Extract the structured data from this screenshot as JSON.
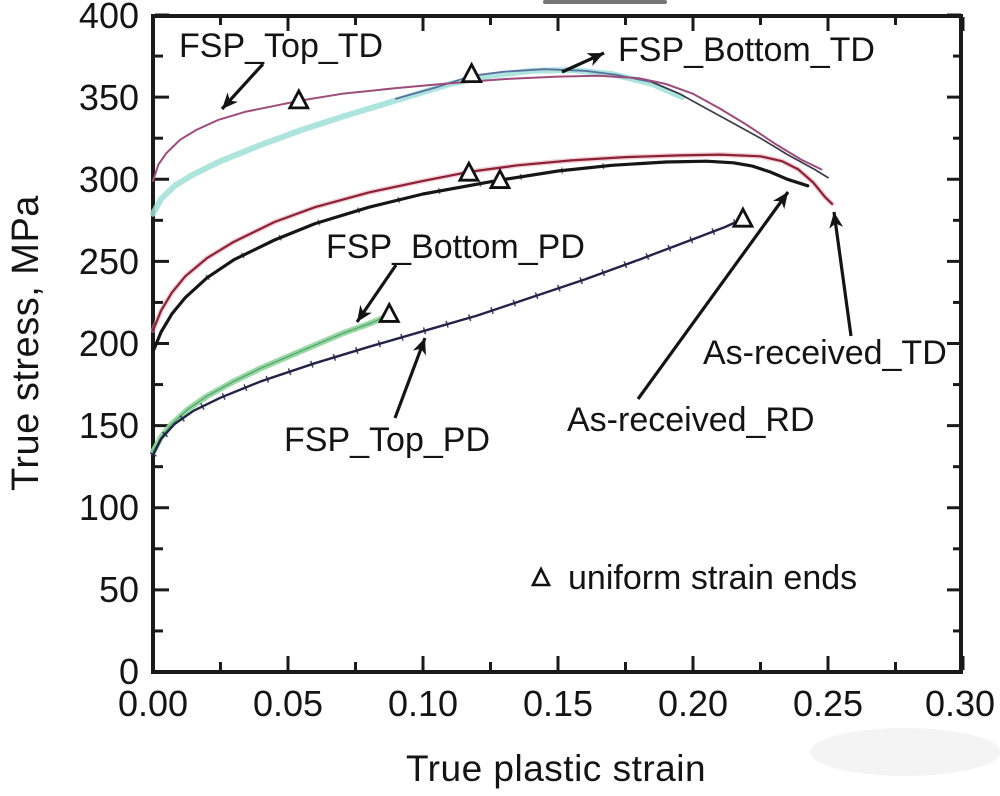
{
  "chart_data": {
    "type": "line",
    "title": "",
    "xlabel": "True plastic strain",
    "ylabel": "True stress, MPa",
    "xlim": [
      0,
      0.3
    ],
    "ylim": [
      0,
      400
    ],
    "grid": false,
    "x_ticks": [
      0,
      0.05,
      0.1,
      0.15,
      0.2,
      0.25,
      0.3
    ],
    "x_minor_ticks": [
      0.025,
      0.075,
      0.125,
      0.175,
      0.225,
      0.275
    ],
    "x_tick_labels": [
      "0.00",
      "0.05",
      "0.10",
      "0.15",
      "0.20",
      "0.25",
      "0.30"
    ],
    "y_ticks": [
      400,
      350,
      300,
      250,
      200,
      150,
      100,
      50,
      0
    ],
    "y_minor_ticks": [
      375,
      325,
      275,
      225,
      175,
      125,
      75,
      25
    ],
    "y_tick_labels": [
      "400",
      "350",
      "300",
      "250",
      "200",
      "150",
      "100",
      "50",
      "0"
    ],
    "frame_color": "#1a1a1a",
    "series": [
      {
        "id": "fsp-bottom-td-band",
        "name": "FSP_Bottom_TD",
        "role": "band",
        "color": "#9fe0d8",
        "width": 6,
        "opacity": 0.85,
        "points": [
          [
            0,
            279
          ],
          [
            0.003,
            288
          ],
          [
            0.008,
            296
          ],
          [
            0.015,
            303
          ],
          [
            0.025,
            311
          ],
          [
            0.04,
            321
          ],
          [
            0.055,
            330
          ],
          [
            0.07,
            338
          ],
          [
            0.09,
            348
          ],
          [
            0.11,
            358
          ],
          [
            0.125,
            363
          ],
          [
            0.14,
            366
          ],
          [
            0.155,
            366.5
          ],
          [
            0.17,
            364
          ],
          [
            0.185,
            358
          ],
          [
            0.196,
            350
          ]
        ]
      },
      {
        "id": "fsp-bottom-td-line",
        "name": "FSP_Bottom_TD",
        "role": "noisy-top-edge",
        "color": "#4f6596",
        "width": 1.8,
        "opacity": 0.9,
        "points": [
          [
            0.09,
            349
          ],
          [
            0.105,
            356
          ],
          [
            0.118,
            363
          ],
          [
            0.13,
            365.5
          ],
          [
            0.145,
            367
          ],
          [
            0.16,
            366
          ],
          [
            0.172,
            363.5
          ],
          [
            0.185,
            359
          ]
        ]
      },
      {
        "id": "fsp-bottom-td-tail",
        "name": "FSP_Bottom_TD",
        "role": "post-neck-tail",
        "color": "#3c3c49",
        "width": 1.7,
        "opacity": 1,
        "points": [
          [
            0.185,
            359
          ],
          [
            0.195,
            352
          ],
          [
            0.205,
            343
          ],
          [
            0.215,
            334
          ],
          [
            0.225,
            325
          ],
          [
            0.235,
            315
          ],
          [
            0.245,
            306
          ],
          [
            0.25,
            301
          ]
        ]
      },
      {
        "id": "fsp-top-td",
        "name": "FSP_Top_TD",
        "role": "main",
        "color": "#9d4c7c",
        "width": 2,
        "opacity": 1,
        "points": [
          [
            0,
            299
          ],
          [
            0.002,
            309
          ],
          [
            0.005,
            316
          ],
          [
            0.01,
            324
          ],
          [
            0.016,
            330
          ],
          [
            0.024,
            336
          ],
          [
            0.034,
            341
          ],
          [
            0.046,
            345
          ],
          [
            0.055,
            348
          ],
          [
            0.07,
            352
          ],
          [
            0.09,
            355.5
          ],
          [
            0.11,
            358.5
          ],
          [
            0.13,
            361
          ],
          [
            0.15,
            362.5
          ],
          [
            0.165,
            363
          ],
          [
            0.18,
            361.5
          ],
          [
            0.19,
            358
          ],
          [
            0.2,
            352
          ],
          [
            0.21,
            343
          ],
          [
            0.22,
            333
          ],
          [
            0.23,
            322
          ],
          [
            0.24,
            312
          ],
          [
            0.2475,
            306
          ]
        ]
      },
      {
        "id": "as-received-td-halo",
        "name": "As-received_TD",
        "role": "halo",
        "color": "#e2a0ac",
        "width": 5,
        "opacity": 0.5,
        "points": [
          [
            0,
            208
          ],
          [
            0.003,
            220
          ],
          [
            0.007,
            231
          ],
          [
            0.012,
            241
          ],
          [
            0.02,
            252
          ],
          [
            0.03,
            262
          ],
          [
            0.045,
            274
          ],
          [
            0.06,
            283
          ],
          [
            0.08,
            292
          ],
          [
            0.1,
            299
          ],
          [
            0.117,
            304.5
          ],
          [
            0.135,
            308.5
          ],
          [
            0.155,
            311.5
          ],
          [
            0.175,
            313.5
          ],
          [
            0.195,
            314.5
          ],
          [
            0.21,
            315
          ],
          [
            0.225,
            314
          ],
          [
            0.233,
            311
          ],
          [
            0.239,
            306
          ],
          [
            0.2445,
            298
          ],
          [
            0.249,
            289
          ],
          [
            0.2515,
            285
          ]
        ]
      },
      {
        "id": "as-received-td",
        "name": "As-received_TD",
        "role": "main",
        "color": "#8c2136",
        "width": 2.2,
        "opacity": 1,
        "points": [
          [
            0,
            208
          ],
          [
            0.003,
            220
          ],
          [
            0.007,
            231
          ],
          [
            0.012,
            241
          ],
          [
            0.02,
            252
          ],
          [
            0.03,
            262
          ],
          [
            0.045,
            274
          ],
          [
            0.06,
            283
          ],
          [
            0.08,
            292
          ],
          [
            0.1,
            299
          ],
          [
            0.117,
            304.5
          ],
          [
            0.135,
            308.5
          ],
          [
            0.155,
            311.5
          ],
          [
            0.175,
            313.5
          ],
          [
            0.195,
            314.5
          ],
          [
            0.21,
            315
          ],
          [
            0.225,
            314
          ],
          [
            0.233,
            311
          ],
          [
            0.239,
            306
          ],
          [
            0.2445,
            298
          ],
          [
            0.249,
            289
          ],
          [
            0.2515,
            285
          ]
        ]
      },
      {
        "id": "as-received-rd",
        "name": "As-received_RD",
        "role": "main",
        "color": "#161616",
        "width": 3.2,
        "opacity": 1,
        "points": [
          [
            0,
            195
          ],
          [
            0.003,
            207
          ],
          [
            0.007,
            218
          ],
          [
            0.012,
            228
          ],
          [
            0.02,
            240
          ],
          [
            0.03,
            251
          ],
          [
            0.045,
            263
          ],
          [
            0.06,
            273
          ],
          [
            0.08,
            283
          ],
          [
            0.1,
            291
          ],
          [
            0.1285,
            299.5
          ],
          [
            0.15,
            305
          ],
          [
            0.17,
            308.5
          ],
          [
            0.19,
            310.5
          ],
          [
            0.205,
            311
          ],
          [
            0.215,
            310
          ],
          [
            0.222,
            308
          ],
          [
            0.2285,
            304.5
          ],
          [
            0.235,
            300
          ],
          [
            0.2425,
            296
          ]
        ]
      },
      {
        "id": "fsp-bottom-pd-band",
        "name": "FSP_Bottom_PD",
        "role": "band",
        "color": "#8ed69a",
        "width": 6,
        "opacity": 0.92,
        "points": [
          [
            0,
            134
          ],
          [
            0.003,
            143
          ],
          [
            0.007,
            151
          ],
          [
            0.013,
            160
          ],
          [
            0.02,
            168
          ],
          [
            0.03,
            177
          ],
          [
            0.04,
            185
          ],
          [
            0.05,
            192
          ],
          [
            0.06,
            199
          ],
          [
            0.07,
            206
          ],
          [
            0.08,
            212
          ],
          [
            0.0865,
            216.5
          ]
        ]
      },
      {
        "id": "fsp-bottom-pd-edge",
        "name": "FSP_Bottom_PD",
        "role": "edge",
        "color": "#3f8f5f",
        "width": 1.4,
        "opacity": 0.7,
        "points": [
          [
            0,
            134
          ],
          [
            0.003,
            143
          ],
          [
            0.007,
            151
          ],
          [
            0.013,
            160
          ],
          [
            0.02,
            168
          ],
          [
            0.03,
            177
          ],
          [
            0.04,
            185
          ],
          [
            0.05,
            192
          ],
          [
            0.06,
            199
          ],
          [
            0.07,
            206
          ],
          [
            0.08,
            212
          ],
          [
            0.0865,
            216.5
          ]
        ]
      },
      {
        "id": "fsp-top-pd",
        "name": "FSP_Top_PD",
        "role": "main",
        "color": "#232349",
        "width": 2.4,
        "opacity": 1,
        "points": [
          [
            0,
            132
          ],
          [
            0.003,
            142
          ],
          [
            0.008,
            151
          ],
          [
            0.015,
            159
          ],
          [
            0.025,
            167
          ],
          [
            0.04,
            177
          ],
          [
            0.06,
            188
          ],
          [
            0.08,
            198
          ],
          [
            0.1,
            207.5
          ],
          [
            0.12,
            217
          ],
          [
            0.14,
            228
          ],
          [
            0.16,
            239
          ],
          [
            0.18,
            251
          ],
          [
            0.2,
            263.5
          ],
          [
            0.212,
            271
          ],
          [
            0.218,
            275.5
          ]
        ]
      },
      {
        "id": "fsp-top-pd-ticks",
        "name": "FSP_Top_PD",
        "role": "point-markers",
        "color": "#232349",
        "width": 7,
        "opacity": 0.85,
        "dash": "1.5 22",
        "points": [
          [
            0,
            132
          ],
          [
            0.003,
            142
          ],
          [
            0.008,
            151
          ],
          [
            0.015,
            159
          ],
          [
            0.025,
            167
          ],
          [
            0.04,
            177
          ],
          [
            0.06,
            188
          ],
          [
            0.08,
            198
          ],
          [
            0.1,
            207.5
          ],
          [
            0.12,
            217
          ],
          [
            0.14,
            228
          ],
          [
            0.16,
            239
          ],
          [
            0.18,
            251
          ],
          [
            0.2,
            263.5
          ],
          [
            0.212,
            271
          ],
          [
            0.218,
            275.5
          ]
        ]
      },
      {
        "id": "as-received-rd-ticks",
        "name": "As-received_RD",
        "role": "point-markers",
        "color": "#161616",
        "width": 6,
        "opacity": 0.6,
        "dash": "1.5 40",
        "points": [
          [
            0.02,
            240
          ],
          [
            0.03,
            251
          ],
          [
            0.045,
            263
          ],
          [
            0.06,
            273
          ],
          [
            0.08,
            283
          ],
          [
            0.1,
            291
          ],
          [
            0.1285,
            299.5
          ],
          [
            0.15,
            305
          ],
          [
            0.17,
            308.5
          ]
        ]
      }
    ],
    "markers": [
      {
        "series": "FSP_Top_TD",
        "strain": 0.054,
        "stress": 348
      },
      {
        "series": "FSP_Bottom_TD",
        "strain": 0.118,
        "stress": 364
      },
      {
        "series": "As-received_TD",
        "strain": 0.117,
        "stress": 304
      },
      {
        "series": "As-received_RD",
        "strain": 0.1285,
        "stress": 299.5
      },
      {
        "series": "FSP_Bottom_PD",
        "strain": 0.0875,
        "stress": 218
      },
      {
        "series": "FSP_Top_PD",
        "strain": 0.2185,
        "stress": 276
      }
    ],
    "marker_symbol": "open-triangle",
    "marker_color": "#111111"
  },
  "annotations": [
    {
      "label": "FSP_Top_TD"
    },
    {
      "label": "FSP_Bottom_TD"
    },
    {
      "label": "FSP_Bottom_PD"
    },
    {
      "label": "FSP_Top_PD"
    },
    {
      "label": "As-received_RD"
    },
    {
      "label": "As-received_TD"
    }
  ],
  "legend": {
    "symbol": "open-triangle",
    "label": "uniform strain ends"
  }
}
